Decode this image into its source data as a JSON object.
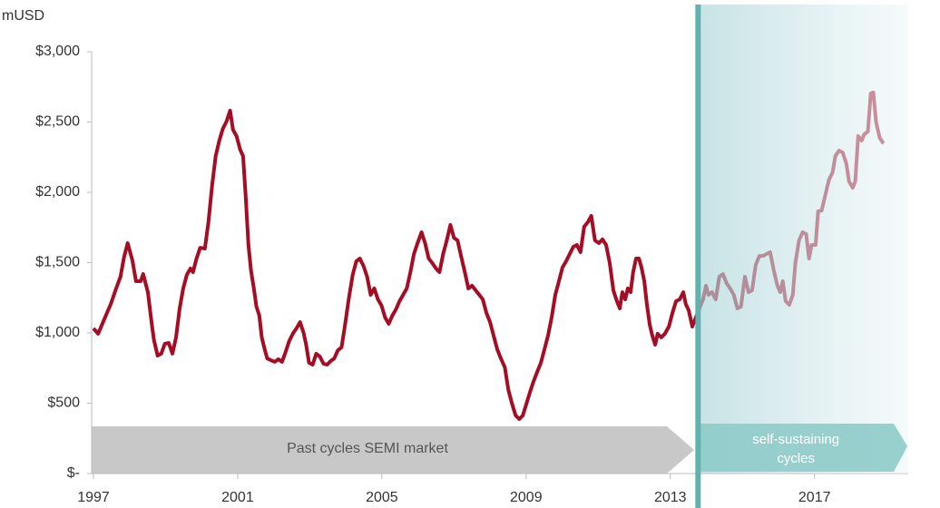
{
  "chart_data": {
    "type": "line",
    "ylabel": "mUSD",
    "color": "#a50d24",
    "ylim": [
      0,
      3000
    ],
    "yticks": [
      {
        "value": 0,
        "label": "$-"
      },
      {
        "value": 500,
        "label": "$500"
      },
      {
        "value": 1000,
        "label": "$1,000"
      },
      {
        "value": 1500,
        "label": "$1,500"
      },
      {
        "value": 2000,
        "label": "$2,000"
      },
      {
        "value": 2500,
        "label": "$2,500"
      },
      {
        "value": 3000,
        "label": "$3,000"
      }
    ],
    "xlim": [
      1996.95,
      2019.6
    ],
    "xticks": [
      1997,
      2001,
      2005,
      2009,
      2013,
      2017
    ],
    "highlight_start": 2013.77,
    "annotations": [
      {
        "text": "Past cycles SEMI market"
      },
      {
        "text_lines": [
          "self-sustaining",
          "cycles"
        ]
      }
    ],
    "x": [
      1997.0,
      1997.13,
      1997.3,
      1997.48,
      1997.63,
      1997.75,
      1997.85,
      1997.95,
      1998.08,
      1998.18,
      1998.31,
      1998.38,
      1998.51,
      1998.61,
      1998.68,
      1998.78,
      1998.88,
      1998.98,
      1999.09,
      1999.19,
      1999.29,
      1999.39,
      1999.49,
      1999.59,
      1999.69,
      1999.76,
      1999.86,
      1999.96,
      2000.09,
      2000.19,
      2000.29,
      2000.39,
      2000.49,
      2000.59,
      2000.69,
      2000.79,
      2000.87,
      2000.97,
      2001.07,
      2001.15,
      2001.22,
      2001.3,
      2001.37,
      2001.45,
      2001.52,
      2001.6,
      2001.67,
      2001.75,
      2001.82,
      2001.92,
      2002.03,
      2002.13,
      2002.23,
      2002.33,
      2002.43,
      2002.53,
      2002.63,
      2002.73,
      2002.83,
      2002.9,
      2002.98,
      2003.08,
      2003.18,
      2003.28,
      2003.38,
      2003.48,
      2003.58,
      2003.68,
      2003.78,
      2003.88,
      2003.98,
      2004.08,
      2004.19,
      2004.29,
      2004.39,
      2004.49,
      2004.59,
      2004.69,
      2004.79,
      2004.89,
      2004.99,
      2005.09,
      2005.19,
      2005.29,
      2005.39,
      2005.49,
      2005.59,
      2005.69,
      2005.79,
      2005.89,
      2005.99,
      2006.1,
      2006.2,
      2006.3,
      2006.4,
      2006.5,
      2006.6,
      2006.7,
      2006.8,
      2006.9,
      2007.0,
      2007.1,
      2007.2,
      2007.3,
      2007.4,
      2007.5,
      2007.6,
      2007.7,
      2007.8,
      2007.9,
      2008.0,
      2008.1,
      2008.2,
      2008.3,
      2008.41,
      2008.51,
      2008.61,
      2008.71,
      2008.81,
      2008.91,
      2009.01,
      2009.11,
      2009.21,
      2009.31,
      2009.41,
      2009.51,
      2009.61,
      2009.71,
      2009.81,
      2009.91,
      2010.01,
      2010.11,
      2010.21,
      2010.31,
      2010.41,
      2010.51,
      2010.61,
      2010.71,
      2010.81,
      2010.91,
      2011.02,
      2011.12,
      2011.22,
      2011.32,
      2011.42,
      2011.52,
      2011.6,
      2011.67,
      2011.75,
      2011.82,
      2011.9,
      2011.97,
      2012.05,
      2012.13,
      2012.2,
      2012.28,
      2012.35,
      2012.43,
      2012.5,
      2012.58,
      2012.65,
      2012.75,
      2012.85,
      2012.96,
      2013.06,
      2013.16,
      2013.26,
      2013.36,
      2013.43,
      2013.51,
      2013.61,
      2013.71,
      2013.81,
      2013.91,
      2013.99,
      2014.06,
      2014.16,
      2014.26,
      2014.36,
      2014.46,
      2014.56,
      2014.66,
      2014.76,
      2014.86,
      2014.96,
      2015.07,
      2015.17,
      2015.27,
      2015.37,
      2015.47,
      2015.57,
      2015.67,
      2015.77,
      2015.87,
      2015.97,
      2016.05,
      2016.12,
      2016.2,
      2016.3,
      2016.4,
      2016.47,
      2016.57,
      2016.67,
      2016.77,
      2016.85,
      2016.92,
      2017.03,
      2017.1,
      2017.2,
      2017.3,
      2017.4,
      2017.5,
      2017.58,
      2017.68,
      2017.78,
      2017.88,
      2017.96,
      2018.06,
      2018.13,
      2018.21,
      2018.31,
      2018.38,
      2018.48,
      2018.56,
      2018.63,
      2018.71,
      2018.81,
      2018.91
    ],
    "values": [
      1032,
      994,
      1097,
      1206,
      1316,
      1400,
      1542,
      1639,
      1516,
      1368,
      1368,
      1419,
      1290,
      1077,
      948,
      839,
      852,
      923,
      929,
      852,
      968,
      1174,
      1316,
      1413,
      1458,
      1432,
      1529,
      1606,
      1600,
      1787,
      2045,
      2258,
      2368,
      2452,
      2503,
      2581,
      2445,
      2400,
      2303,
      2258,
      1981,
      1626,
      1445,
      1316,
      1187,
      1123,
      968,
      884,
      819,
      806,
      794,
      813,
      794,
      865,
      942,
      994,
      1032,
      1077,
      1000,
      916,
      787,
      774,
      852,
      832,
      781,
      774,
      800,
      819,
      877,
      897,
      1058,
      1239,
      1413,
      1510,
      1529,
      1477,
      1400,
      1271,
      1316,
      1239,
      1194,
      1110,
      1065,
      1123,
      1168,
      1226,
      1271,
      1316,
      1432,
      1561,
      1639,
      1716,
      1639,
      1529,
      1497,
      1458,
      1432,
      1561,
      1658,
      1768,
      1677,
      1658,
      1542,
      1432,
      1316,
      1336,
      1303,
      1271,
      1239,
      1142,
      1077,
      981,
      884,
      819,
      755,
      594,
      497,
      413,
      387,
      413,
      497,
      581,
      658,
      723,
      787,
      884,
      981,
      1110,
      1271,
      1368,
      1465,
      1510,
      1561,
      1613,
      1626,
      1574,
      1755,
      1787,
      1832,
      1658,
      1639,
      1665,
      1626,
      1497,
      1303,
      1226,
      1174,
      1290,
      1239,
      1316,
      1290,
      1432,
      1529,
      1529,
      1465,
      1368,
      1206,
      1058,
      981,
      916,
      994,
      968,
      994,
      1045,
      1142,
      1226,
      1239,
      1290,
      1206,
      1161,
      1045,
      1110,
      1174,
      1239,
      1336,
      1271,
      1290,
      1239,
      1400,
      1419,
      1355,
      1316,
      1271,
      1174,
      1187,
      1400,
      1290,
      1303,
      1484,
      1548,
      1548,
      1561,
      1574,
      1445,
      1336,
      1290,
      1368,
      1226,
      1200,
      1271,
      1497,
      1658,
      1716,
      1703,
      1529,
      1626,
      1626,
      1865,
      1871,
      1981,
      2090,
      2142,
      2258,
      2297,
      2284,
      2206,
      2077,
      2032,
      2077,
      2400,
      2368,
      2413,
      2432,
      2703,
      2710,
      2497,
      2387,
      2348
    ]
  }
}
